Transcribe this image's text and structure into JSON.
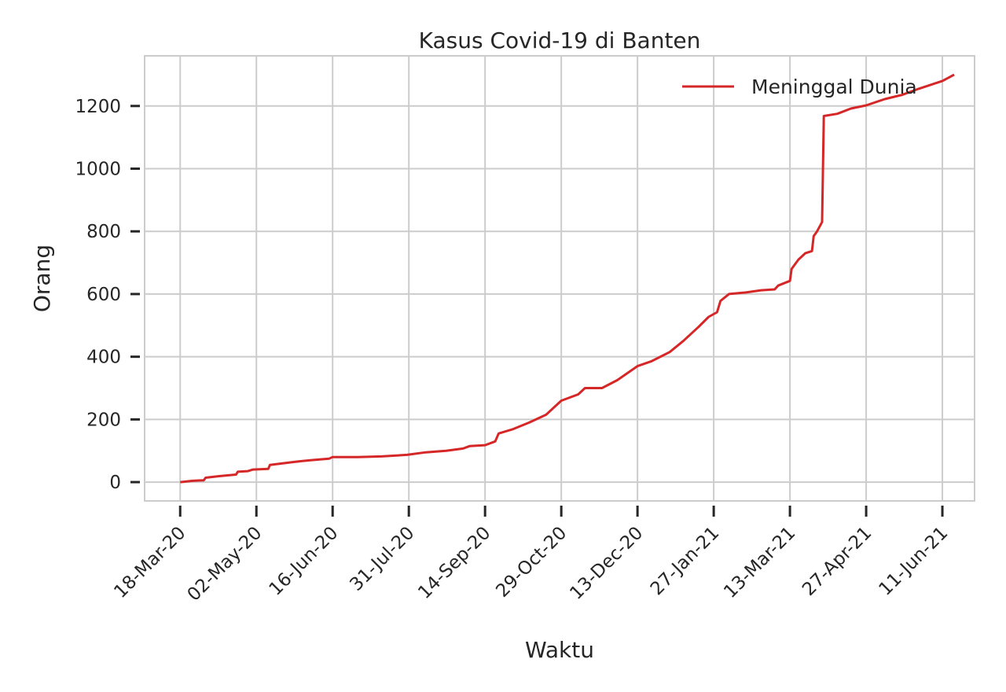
{
  "chart_data": {
    "type": "line",
    "title": "Kasus Covid-19 di Banten",
    "xlabel": "Waktu",
    "ylabel": "Orang",
    "x_tick_labels": [
      "18-Mar-20",
      "02-May-20",
      "16-Jun-20",
      "31-Jul-20",
      "14-Sep-20",
      "29-Oct-20",
      "13-Dec-20",
      "27-Jan-21",
      "13-Mar-21",
      "27-Apr-21",
      "11-Jun-21"
    ],
    "y_ticks": [
      0,
      200,
      400,
      600,
      800,
      1000,
      1200
    ],
    "ylim": [
      -60,
      1360
    ],
    "xlim": [
      "2020-02-26",
      "2021-06-30"
    ],
    "grid": true,
    "legend_position": "upper right",
    "series": [
      {
        "name": "Meninggal Dunia",
        "color": "#d62728",
        "points": [
          [
            "2020-03-18",
            0
          ],
          [
            "2020-03-25",
            4
          ],
          [
            "2020-04-01",
            6
          ],
          [
            "2020-04-02",
            14
          ],
          [
            "2020-04-10",
            19
          ],
          [
            "2020-04-20",
            24
          ],
          [
            "2020-04-21",
            33
          ],
          [
            "2020-04-27",
            35
          ],
          [
            "2020-04-30",
            40
          ],
          [
            "2020-05-09",
            42
          ],
          [
            "2020-05-10",
            55
          ],
          [
            "2020-05-16",
            59
          ],
          [
            "2020-05-25",
            65
          ],
          [
            "2020-06-03",
            70
          ],
          [
            "2020-06-14",
            75
          ],
          [
            "2020-06-16",
            80
          ],
          [
            "2020-07-01",
            80
          ],
          [
            "2020-07-15",
            82
          ],
          [
            "2020-07-30",
            87
          ],
          [
            "2020-08-10",
            95
          ],
          [
            "2020-08-22",
            100
          ],
          [
            "2020-09-01",
            107
          ],
          [
            "2020-09-05",
            115
          ],
          [
            "2020-09-14",
            118
          ],
          [
            "2020-09-20",
            130
          ],
          [
            "2020-09-22",
            155
          ],
          [
            "2020-09-30",
            168
          ],
          [
            "2020-10-10",
            190
          ],
          [
            "2020-10-20",
            215
          ],
          [
            "2020-10-29",
            260
          ],
          [
            "2020-11-08",
            280
          ],
          [
            "2020-11-12",
            300
          ],
          [
            "2020-11-22",
            300
          ],
          [
            "2020-12-01",
            325
          ],
          [
            "2020-12-13",
            370
          ],
          [
            "2020-12-21",
            385
          ],
          [
            "2021-01-01",
            415
          ],
          [
            "2021-01-09",
            450
          ],
          [
            "2021-01-18",
            495
          ],
          [
            "2021-01-24",
            527
          ],
          [
            "2021-01-29",
            542
          ],
          [
            "2021-01-31",
            578
          ],
          [
            "2021-02-05",
            600
          ],
          [
            "2021-02-15",
            605
          ],
          [
            "2021-02-24",
            612
          ],
          [
            "2021-03-04",
            615
          ],
          [
            "2021-03-06",
            627
          ],
          [
            "2021-03-13",
            642
          ],
          [
            "2021-03-14",
            680
          ],
          [
            "2021-03-18",
            710
          ],
          [
            "2021-03-22",
            730
          ],
          [
            "2021-03-26",
            737
          ],
          [
            "2021-03-27",
            785
          ],
          [
            "2021-03-29",
            800
          ],
          [
            "2021-04-01",
            830
          ],
          [
            "2021-04-02",
            1168
          ],
          [
            "2021-04-10",
            1175
          ],
          [
            "2021-04-18",
            1192
          ],
          [
            "2021-04-27",
            1202
          ],
          [
            "2021-05-08",
            1222
          ],
          [
            "2021-05-18",
            1235
          ],
          [
            "2021-05-28",
            1255
          ],
          [
            "2021-06-11",
            1280
          ],
          [
            "2021-06-18",
            1300
          ]
        ]
      }
    ]
  }
}
